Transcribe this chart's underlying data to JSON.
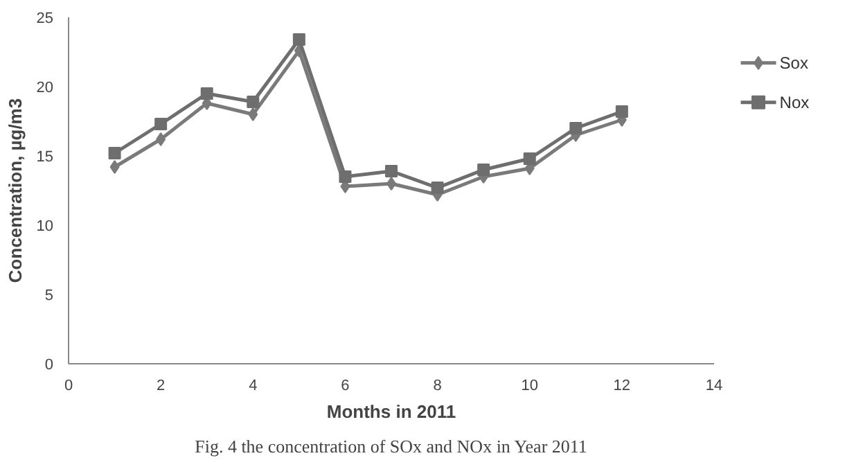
{
  "chart_data": {
    "type": "line",
    "xlabel": "Months in 2011",
    "ylabel": "Concentration, µg/m3",
    "annotations": [
      "Fig. 4 the concentration of SOx and NOx in Year 2011"
    ],
    "x": [
      1,
      2,
      3,
      4,
      5,
      6,
      7,
      8,
      9,
      10,
      11,
      12
    ],
    "series": [
      {
        "name": "Sox",
        "color": "#7a7a7a",
        "marker": "diamond",
        "values": [
          14.2,
          16.2,
          18.8,
          18.0,
          22.6,
          12.8,
          13.0,
          12.2,
          13.5,
          14.1,
          16.5,
          17.6
        ]
      },
      {
        "name": "Nox",
        "color": "#6e6e6e",
        "marker": "square",
        "values": [
          15.2,
          17.3,
          19.5,
          18.9,
          23.4,
          13.5,
          13.9,
          12.7,
          14.0,
          14.8,
          17.0,
          18.2
        ]
      }
    ],
    "xlim": [
      0,
      14
    ],
    "xticks": [
      0,
      2,
      4,
      6,
      8,
      10,
      12,
      14
    ],
    "ylim": [
      0,
      25
    ],
    "yticks": [
      0,
      5,
      10,
      15,
      20,
      25
    ],
    "grid": false,
    "legend": "right"
  }
}
